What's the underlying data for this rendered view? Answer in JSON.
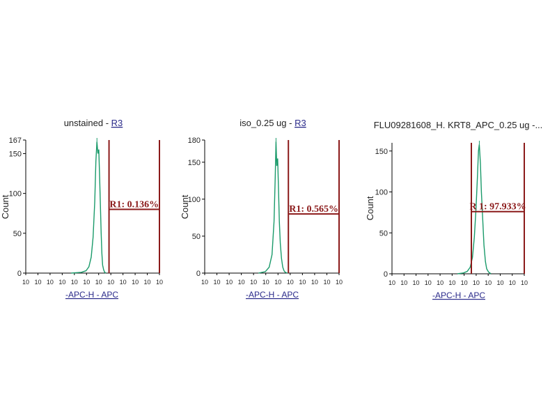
{
  "colors": {
    "histogram": "#1a9a6a",
    "gate": "#8b1a1a",
    "axis": "#000000",
    "axis_label_link": "#2a2a8a"
  },
  "chart_data": [
    {
      "type": "area",
      "title": "unstained",
      "title_sep": " - ",
      "title_link": "R3",
      "xlabel": "-APC-H - APC",
      "ylabel": "Count",
      "x_scale": "log",
      "xlim": [
        1,
        100000
      ],
      "ylim": [
        0,
        167
      ],
      "ymax_label": "167",
      "yticks": [
        0,
        50,
        100,
        150
      ],
      "xtick_labels": [
        "10",
        "10",
        "10",
        "10",
        "10",
        "10",
        "10",
        "10",
        "10",
        "10",
        "10",
        "10"
      ],
      "series": [
        {
          "x": [
            50,
            120,
            180,
            230,
            280,
            330,
            380,
            420,
            460,
            500,
            540,
            580,
            620,
            660,
            700,
            750,
            820,
            900,
            1000
          ],
          "y": [
            0,
            1,
            3,
            8,
            20,
            45,
            90,
            140,
            165,
            150,
            155,
            120,
            85,
            50,
            25,
            10,
            4,
            1,
            0
          ]
        }
      ],
      "gate": {
        "name": "R1",
        "label": "R1: 0.136%",
        "x_start": 1300,
        "x_end": 100000,
        "level": 80
      }
    },
    {
      "type": "area",
      "title": "iso_0.25 ug",
      "title_sep": " - ",
      "title_link": "R3",
      "xlabel": "-APC-H - APC",
      "ylabel": "Count",
      "x_scale": "log",
      "xlim": [
        1,
        100000
      ],
      "ylim": [
        0,
        180
      ],
      "ymax_label": "180",
      "yticks": [
        0,
        50,
        100,
        150
      ],
      "xtick_labels": [
        "10",
        "10",
        "10",
        "10",
        "10",
        "10",
        "10",
        "10",
        "10",
        "10",
        "10",
        "10"
      ],
      "series": [
        {
          "x": [
            100,
            180,
            250,
            320,
            380,
            420,
            450,
            480,
            520,
            560,
            600,
            650,
            720,
            800,
            900,
            1000,
            1200
          ],
          "y": [
            0,
            2,
            8,
            25,
            70,
            130,
            178,
            145,
            155,
            110,
            70,
            40,
            20,
            8,
            3,
            1,
            0
          ]
        }
      ],
      "gate": {
        "name": "R1",
        "label": "R1: 0.565%",
        "x_start": 1300,
        "x_end": 100000,
        "level": 80
      }
    },
    {
      "type": "area",
      "title": "FLU09281608_H. KRT8_APC_0.25 ug -...",
      "title_sep": "",
      "title_link": "",
      "xlabel": "-APC-H - APC",
      "ylabel": "Count",
      "x_scale": "log",
      "xlim": [
        1,
        100000
      ],
      "ylim": [
        0,
        160
      ],
      "ymax_label": "",
      "yticks": [
        0,
        50,
        100,
        150
      ],
      "xtick_labels": [
        "10",
        "10",
        "10",
        "10",
        "10",
        "10",
        "10",
        "10",
        "10",
        "10",
        "10",
        "10"
      ],
      "series": [
        {
          "x": [
            300,
            500,
            700,
            900,
            1100,
            1300,
            1500,
            1700,
            1850,
            2000,
            2200,
            2400,
            2700,
            3000,
            3400,
            3800,
            4500,
            5500
          ],
          "y": [
            0,
            1,
            3,
            8,
            20,
            45,
            80,
            120,
            150,
            158,
            135,
            100,
            65,
            35,
            15,
            6,
            2,
            0
          ]
        }
      ],
      "gate": {
        "name": "R1",
        "label": "R 1: 97.933%",
        "x_start": 1000,
        "x_end": 100000,
        "level": 76
      }
    }
  ]
}
